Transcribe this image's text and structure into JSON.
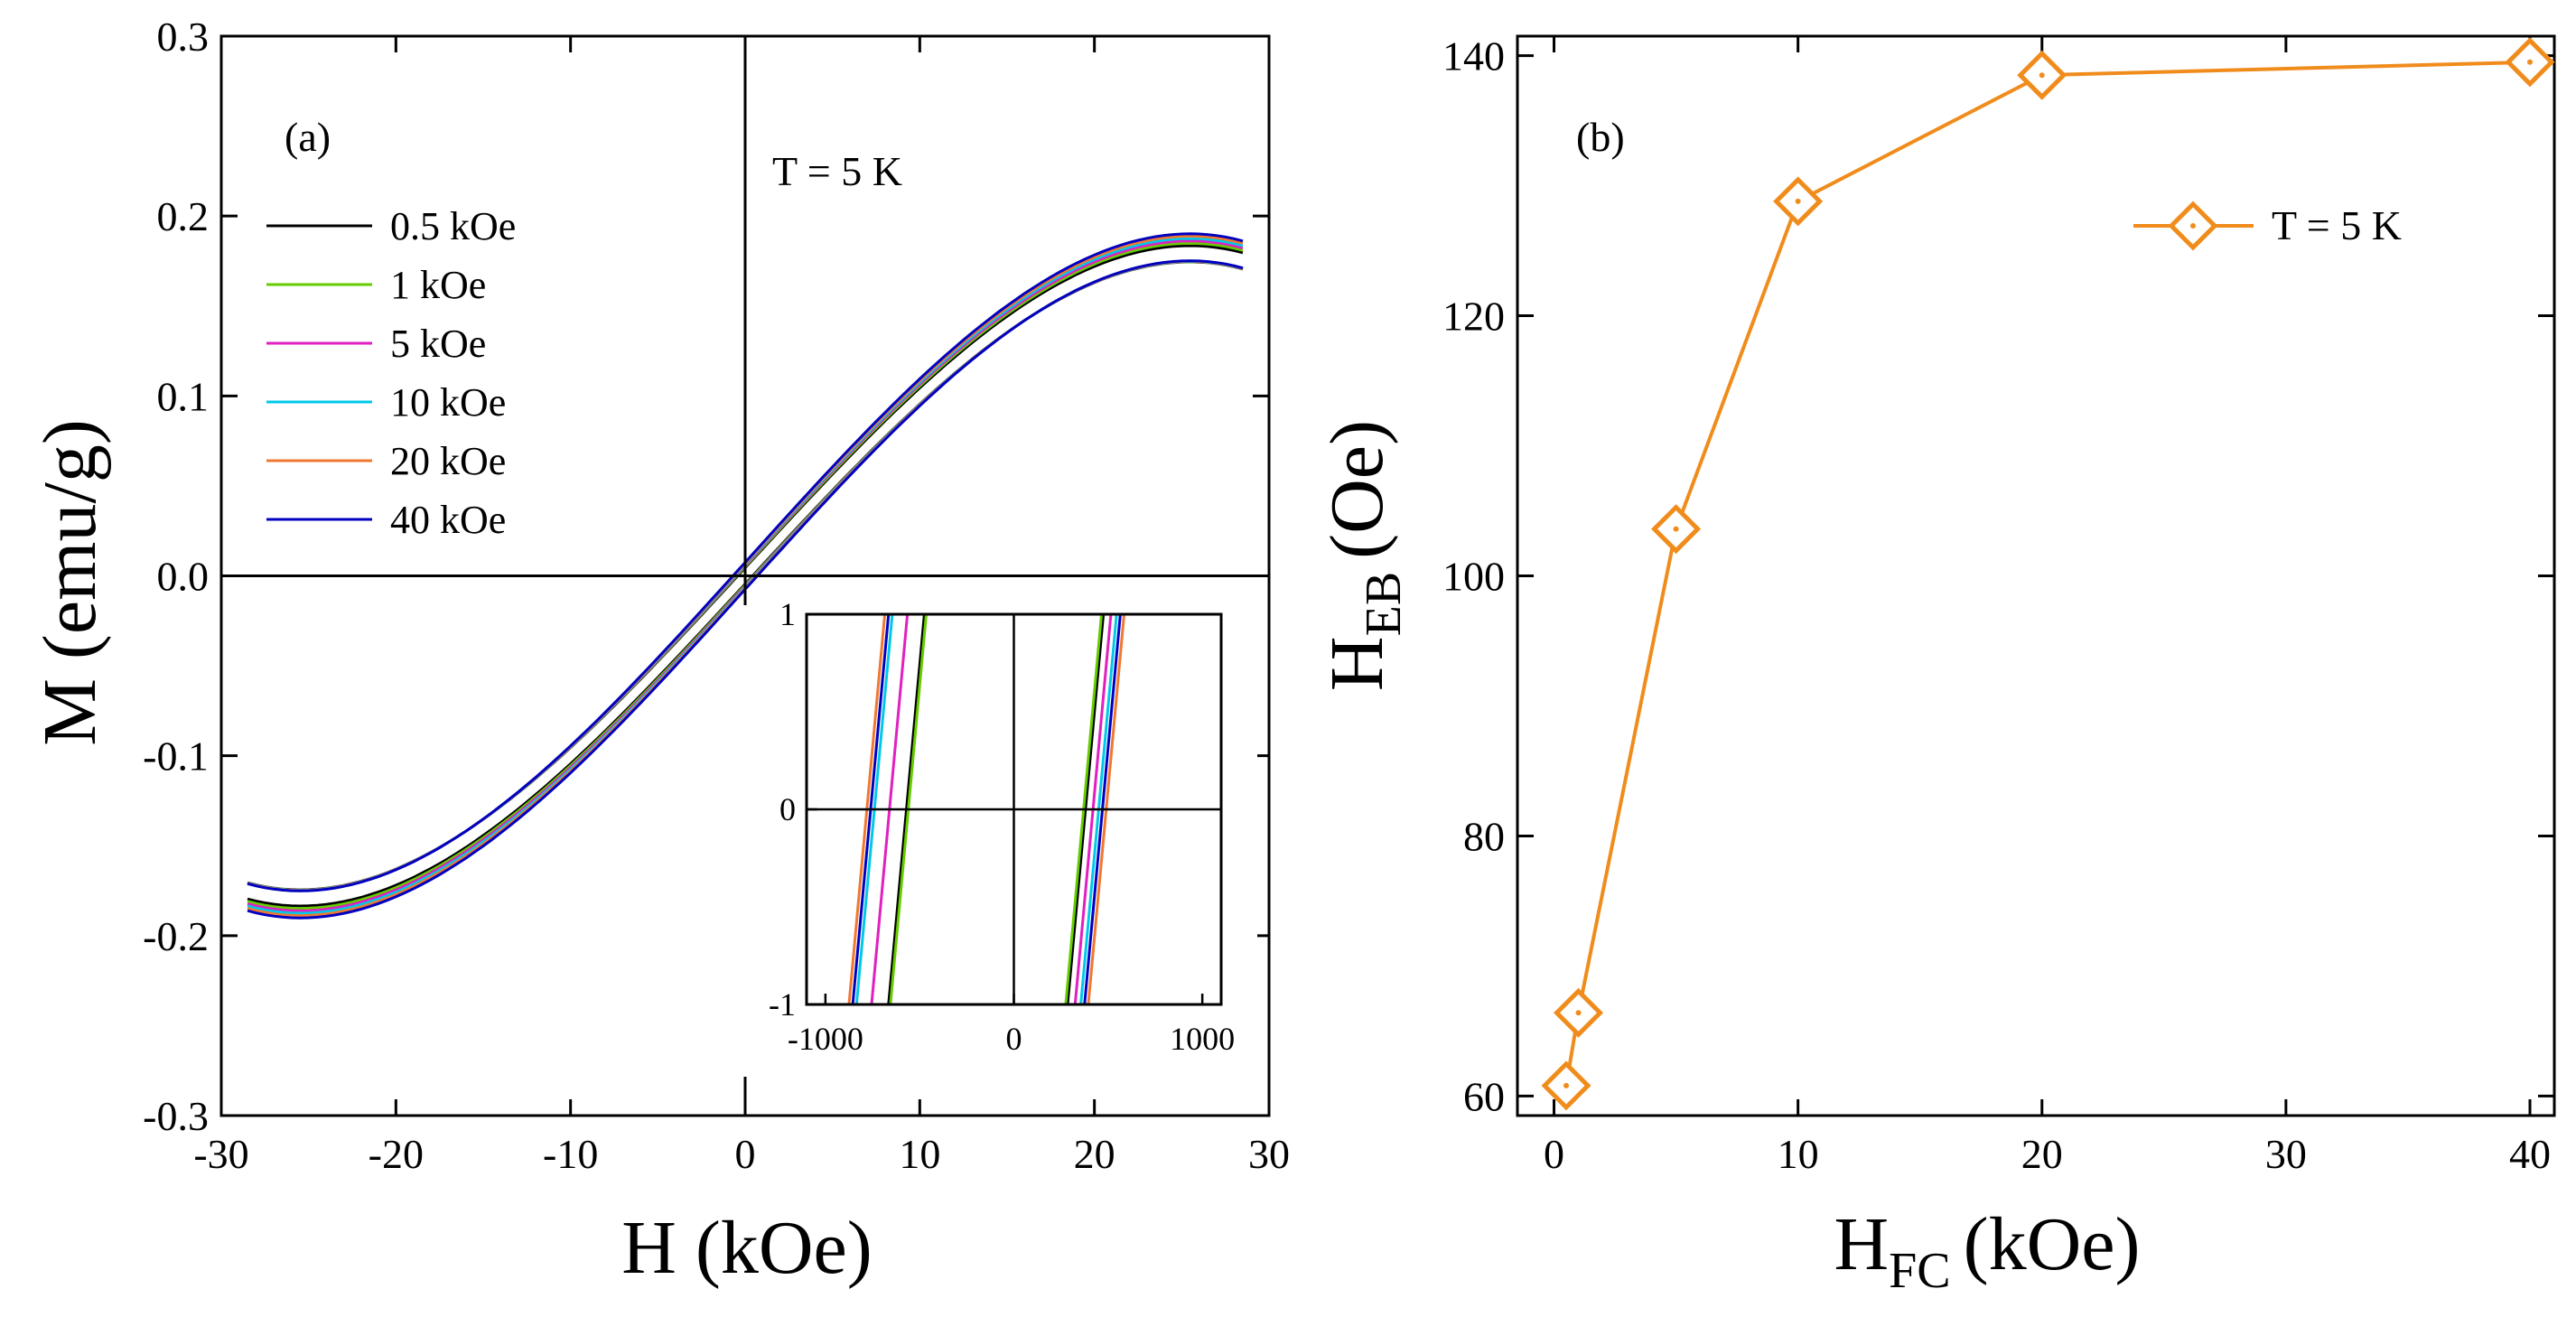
{
  "figure": {
    "panels": [
      "(a)",
      "(b)"
    ]
  },
  "chart_data": [
    {
      "type": "line",
      "panel_label": "(a)",
      "annotation": "T = 5 K",
      "xlabel": "H (kOe)",
      "ylabel": "M (emu/g)",
      "xlim": [
        -30,
        30
      ],
      "ylim": [
        -0.3,
        0.3
      ],
      "xticks": [
        "-30",
        "-20",
        "-10",
        "0",
        "10",
        "20",
        "30"
      ],
      "yticks": [
        "-0.3",
        "-0.2",
        "-0.1",
        "0.0",
        "0.1",
        "0.2",
        "0.3"
      ],
      "legend_position": "top-left",
      "series": [
        {
          "name": "0.5 kOe",
          "color": "#000000",
          "hc_left": -570,
          "hc_right": 380
        },
        {
          "name": "1 kOe",
          "color": "#66cc00",
          "hc_left": -560,
          "hc_right": 370
        },
        {
          "name": "5 kOe",
          "color": "#e020c0",
          "hc_left": -660,
          "hc_right": 420
        },
        {
          "name": "10 kOe",
          "color": "#00c8e8",
          "hc_left": -740,
          "hc_right": 450
        },
        {
          "name": "20 kOe",
          "color": "#f07830",
          "hc_left": -780,
          "hc_right": 490
        },
        {
          "name": "40 kOe",
          "color": "#0000c0",
          "hc_left": -760,
          "hc_right": 470
        }
      ],
      "inset": {
        "xlim": [
          -1100,
          1100
        ],
        "ylim": [
          -1,
          1
        ],
        "xticks": [
          "-1000",
          "0",
          "1000"
        ],
        "yticks": [
          "-1",
          "0",
          "1"
        ]
      }
    },
    {
      "type": "line",
      "panel_label": "(b)",
      "xlabel_main": "H",
      "xlabel_sub": "FC",
      "xlabel_unit": "(kOe)",
      "ylabel_main": "H",
      "ylabel_sub": "EB",
      "ylabel_unit": "(Oe)",
      "xlim": [
        -1.5,
        41
      ],
      "ylim": [
        58.5,
        141.5
      ],
      "xticks": [
        "0",
        "10",
        "20",
        "30",
        "40"
      ],
      "yticks": [
        "60",
        "80",
        "100",
        "120",
        "140"
      ],
      "legend_position": "top-right",
      "series": [
        {
          "name": "T = 5 K",
          "color": "#f08c1c",
          "marker": "diamond",
          "x": [
            0.5,
            1,
            5,
            10,
            20,
            40
          ],
          "y": [
            60.8,
            66.4,
            103.6,
            128.8,
            138.5,
            139.5
          ]
        }
      ]
    }
  ]
}
